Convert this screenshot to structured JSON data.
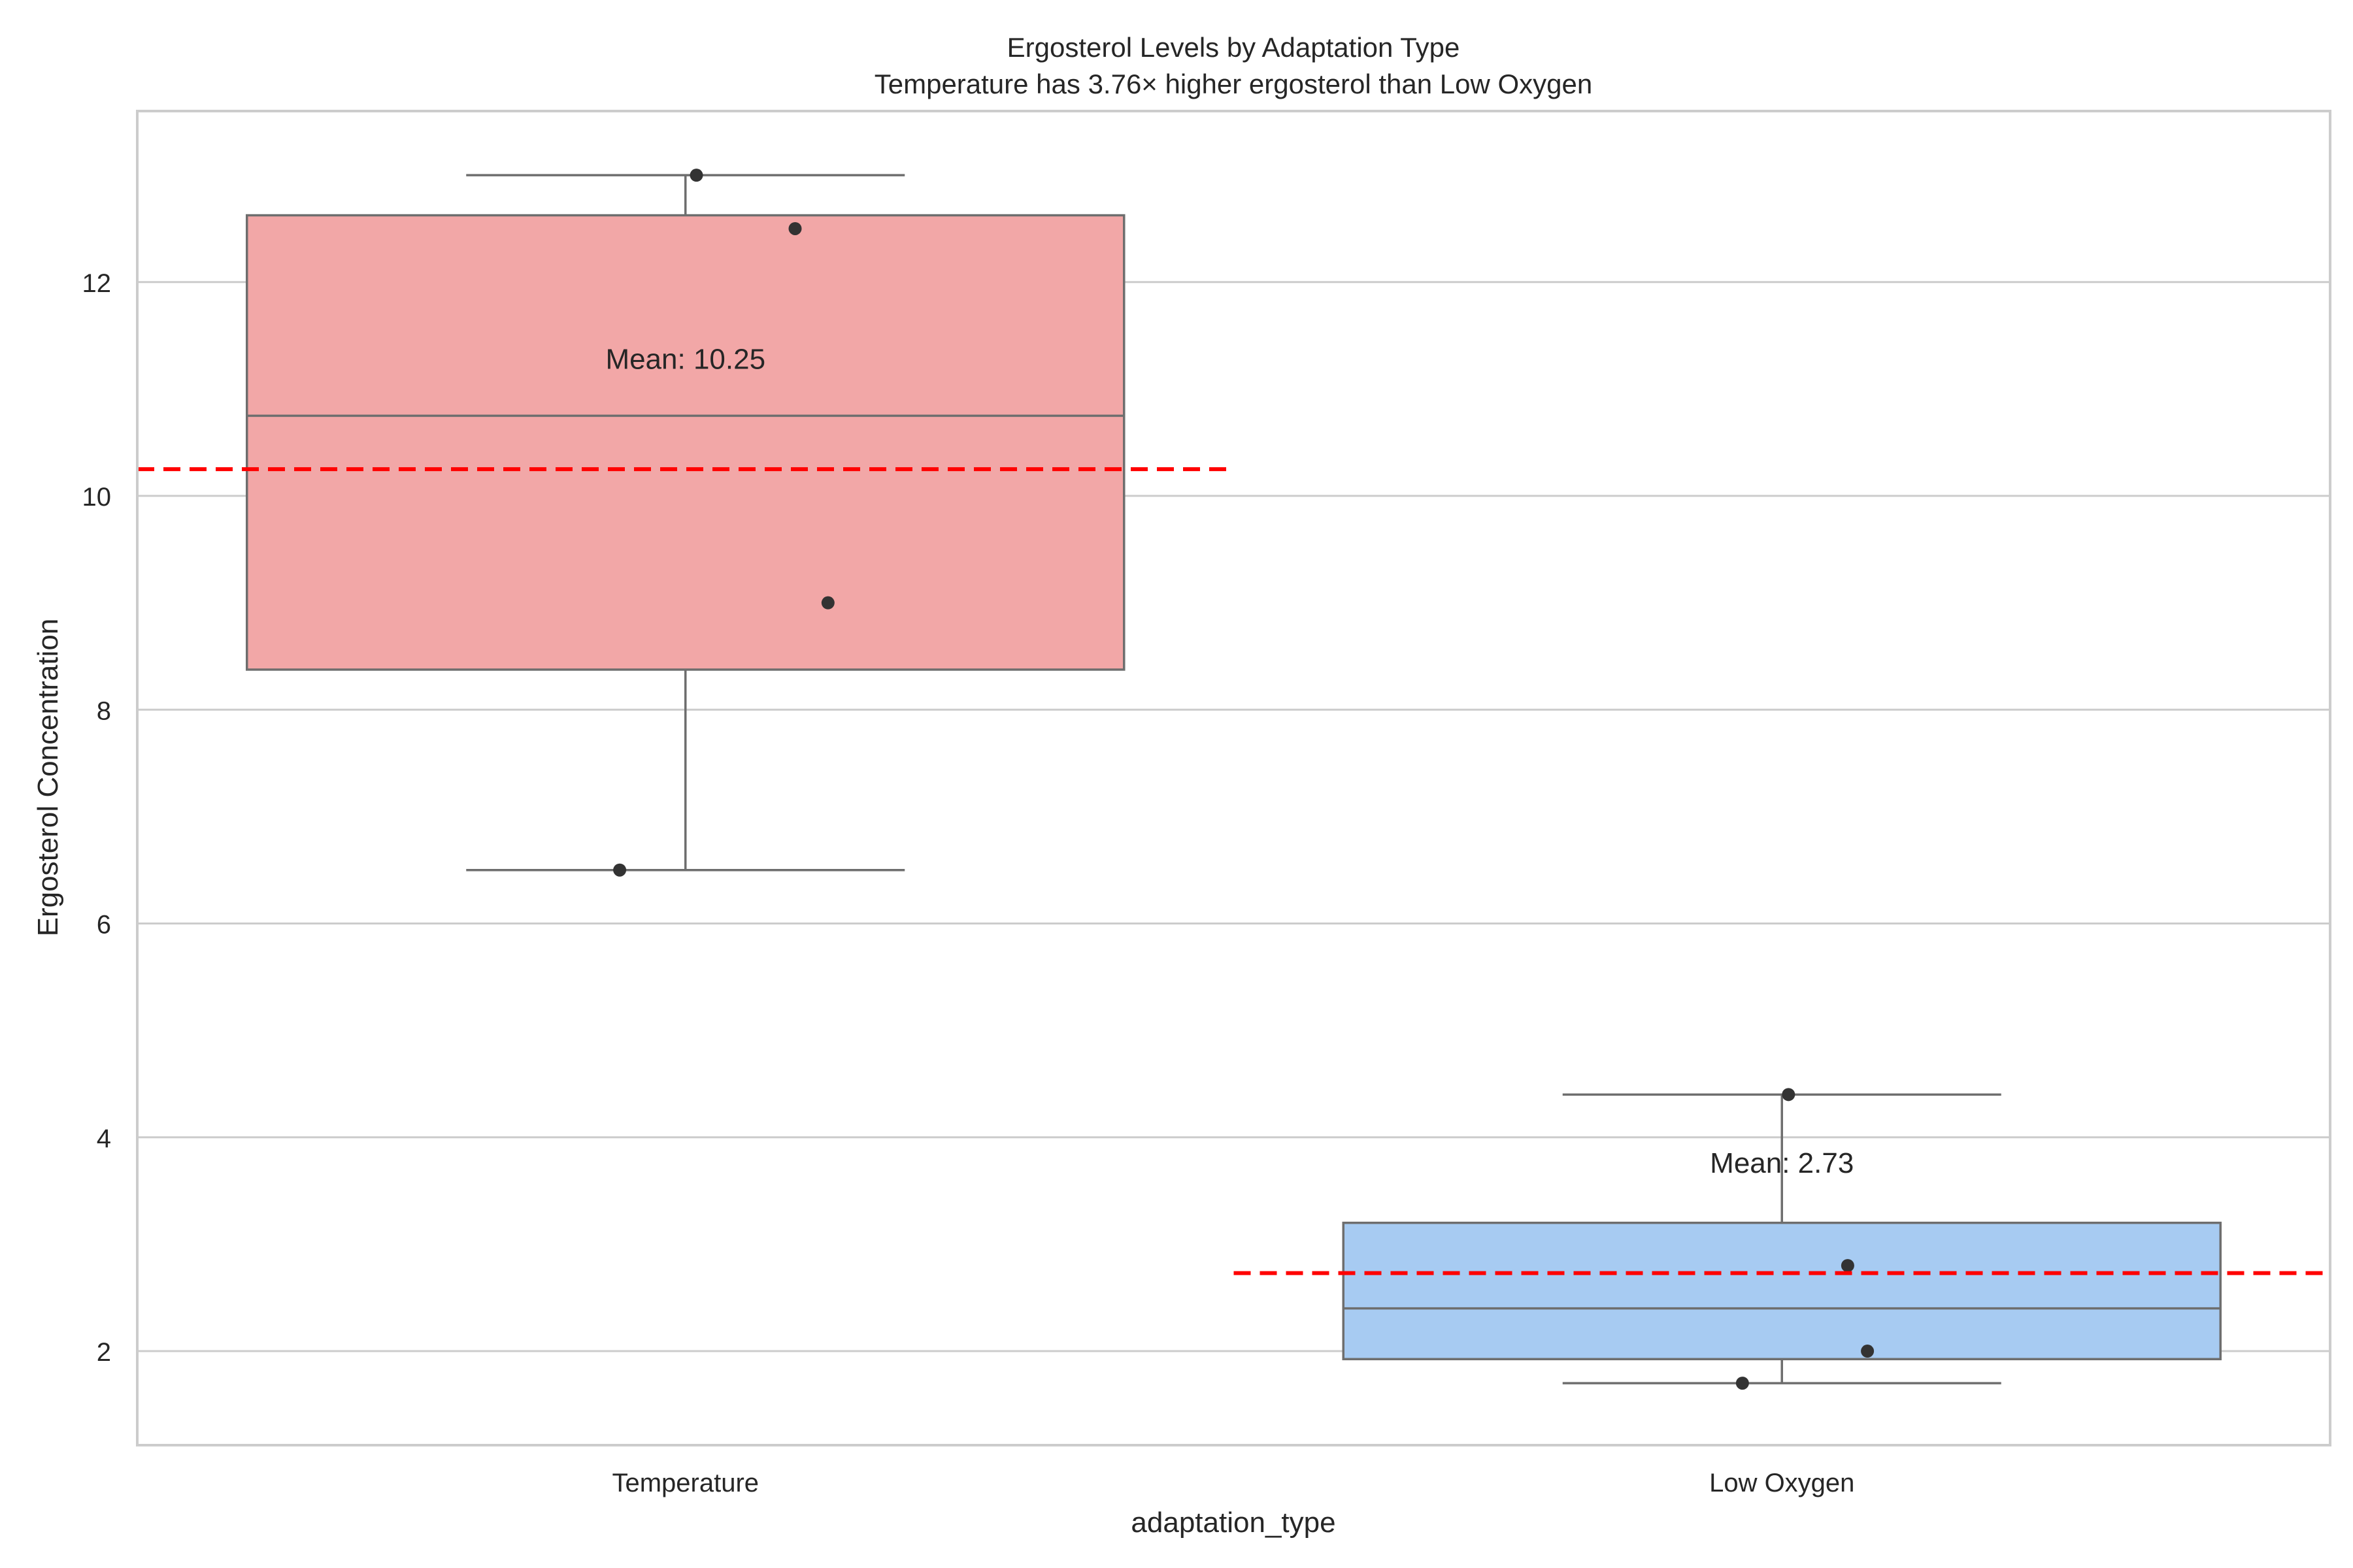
{
  "chart_data": {
    "type": "box",
    "title": "Ergosterol Levels by Adaptation Type",
    "subtitle": "Temperature has 3.76× higher ergosterol than Low Oxygen",
    "xlabel": "adaptation_type",
    "ylabel": "Ergosterol Concentration",
    "ylim": [
      1.12,
      13.6
    ],
    "yticks": [
      2,
      4,
      6,
      8,
      10,
      12
    ],
    "grid": "y",
    "categories": [
      "Temperature",
      "Low Oxygen"
    ],
    "groups": [
      {
        "name": "Temperature",
        "color": "#f2a7a7",
        "whisker_low": 6.5,
        "q1": 8.375,
        "median": 10.75,
        "q3": 12.625,
        "whisker_high": 13.0,
        "mean": 10.25,
        "mean_label": "Mean: 10.25",
        "points": [
          13.0,
          12.5,
          9.0,
          6.5
        ]
      },
      {
        "name": "Low Oxygen",
        "color": "#a7cbf2",
        "whisker_low": 1.7,
        "q1": 1.925,
        "median": 2.4,
        "q3": 3.2,
        "whisker_high": 4.4,
        "mean": 2.73,
        "mean_label": "Mean: 2.73",
        "points": [
          4.4,
          2.8,
          2.0,
          1.7
        ]
      }
    ],
    "colors": {
      "mean_line": "#ff0000",
      "box_edge": "#6e6e6e",
      "grid": "#cccccc",
      "points": "#333333"
    }
  }
}
